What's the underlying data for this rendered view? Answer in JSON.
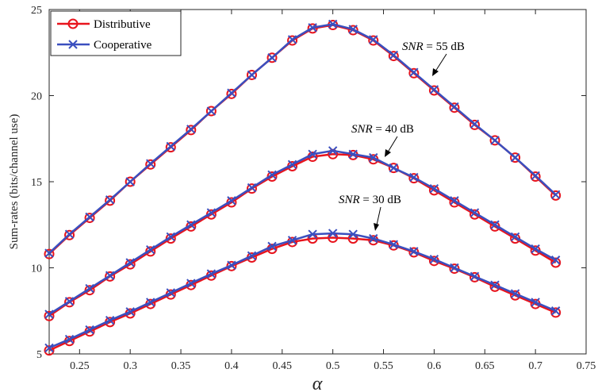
{
  "chart_data": {
    "type": "line",
    "title": "",
    "xlabel": "α",
    "ylabel": "Sum-rates (bits/channel use)",
    "xlim": [
      0.22,
      0.75
    ],
    "ylim": [
      5,
      25
    ],
    "xticks": [
      "0.25",
      "0.3",
      "0.35",
      "0.4",
      "0.45",
      "0.5",
      "0.55",
      "0.6",
      "0.65",
      "0.7",
      "0.75"
    ],
    "yticks": [
      "5",
      "10",
      "15",
      "20",
      "25"
    ],
    "grid": false,
    "legend_position": "top-left",
    "legend": [
      {
        "name": "Distributive",
        "color": "#e8141d",
        "marker": "circle"
      },
      {
        "name": "Cooperative",
        "color": "#3a4fbf",
        "marker": "x"
      }
    ],
    "x": [
      0.22,
      0.24,
      0.26,
      0.28,
      0.3,
      0.32,
      0.34,
      0.36,
      0.38,
      0.4,
      0.42,
      0.44,
      0.46,
      0.48,
      0.5,
      0.52,
      0.54,
      0.56,
      0.58,
      0.6,
      0.62,
      0.64,
      0.66,
      0.68,
      0.7,
      0.72
    ],
    "series": [
      {
        "group": "SNR = 55 dB",
        "name": "Distributive",
        "values": [
          10.8,
          11.9,
          12.9,
          13.9,
          15.0,
          16.0,
          17.0,
          18.0,
          19.1,
          20.1,
          21.2,
          22.2,
          23.2,
          23.9,
          24.1,
          23.8,
          23.2,
          22.3,
          21.3,
          20.3,
          19.3,
          18.3,
          17.4,
          16.4,
          15.3,
          14.2
        ]
      },
      {
        "group": "SNR = 55 dB",
        "name": "Cooperative",
        "values": [
          10.85,
          11.95,
          12.95,
          13.95,
          15.0,
          16.05,
          17.05,
          18.05,
          19.1,
          20.15,
          21.2,
          22.2,
          23.25,
          23.95,
          24.15,
          23.85,
          23.25,
          22.35,
          21.35,
          20.35,
          19.35,
          18.35,
          17.4,
          16.4,
          15.35,
          14.25
        ]
      },
      {
        "group": "SNR = 40 dB",
        "name": "Distributive",
        "values": [
          7.2,
          8.0,
          8.7,
          9.5,
          10.2,
          10.95,
          11.7,
          12.4,
          13.1,
          13.8,
          14.6,
          15.3,
          15.9,
          16.45,
          16.6,
          16.55,
          16.3,
          15.8,
          15.2,
          14.5,
          13.8,
          13.1,
          12.4,
          11.7,
          11.0,
          10.3
        ]
      },
      {
        "group": "SNR = 40 dB",
        "name": "Cooperative",
        "values": [
          7.3,
          8.05,
          8.8,
          9.55,
          10.3,
          11.05,
          11.8,
          12.5,
          13.2,
          13.9,
          14.65,
          15.4,
          16.0,
          16.6,
          16.8,
          16.6,
          16.4,
          15.8,
          15.25,
          14.6,
          13.9,
          13.2,
          12.5,
          11.8,
          11.1,
          10.45
        ]
      },
      {
        "group": "SNR = 30 dB",
        "name": "Distributive",
        "values": [
          5.2,
          5.75,
          6.3,
          6.85,
          7.35,
          7.9,
          8.45,
          9.0,
          9.55,
          10.1,
          10.6,
          11.1,
          11.5,
          11.7,
          11.75,
          11.7,
          11.6,
          11.3,
          10.9,
          10.4,
          9.95,
          9.45,
          8.9,
          8.4,
          7.9,
          7.4
        ]
      },
      {
        "group": "SNR = 30 dB",
        "name": "Cooperative",
        "values": [
          5.35,
          5.85,
          6.4,
          6.95,
          7.45,
          8.0,
          8.55,
          9.1,
          9.65,
          10.15,
          10.7,
          11.25,
          11.6,
          11.95,
          12.0,
          11.95,
          11.7,
          11.35,
          10.95,
          10.5,
          10.0,
          9.5,
          9.0,
          8.5,
          8.0,
          7.5
        ]
      }
    ],
    "annotations": [
      {
        "var": "SNR",
        "text": " = 55 dB"
      },
      {
        "var": "SNR",
        "text": " = 40 dB"
      },
      {
        "var": "SNR",
        "text": " = 30 dB"
      }
    ]
  }
}
